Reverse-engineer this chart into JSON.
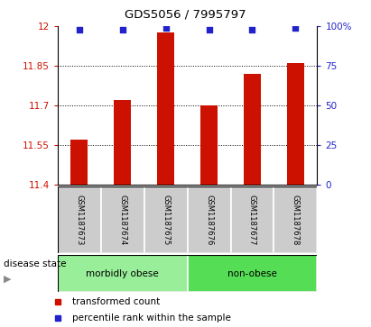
{
  "title": "GDS5056 / 7995797",
  "samples": [
    "GSM1187673",
    "GSM1187674",
    "GSM1187675",
    "GSM1187676",
    "GSM1187677",
    "GSM1187678"
  ],
  "bar_values": [
    11.57,
    11.72,
    11.975,
    11.7,
    11.82,
    11.86
  ],
  "percentile_values": [
    98,
    98,
    99,
    98,
    98,
    99
  ],
  "bar_color": "#cc1100",
  "percentile_color": "#2222cc",
  "ymin": 11.4,
  "ymax": 12.0,
  "yticks": [
    11.4,
    11.55,
    11.7,
    11.85,
    12.0
  ],
  "ytick_labels": [
    "11.4",
    "11.55",
    "11.7",
    "11.85",
    "12"
  ],
  "right_yticks": [
    0,
    25,
    50,
    75,
    100
  ],
  "right_ytick_labels": [
    "0",
    "25",
    "50",
    "75",
    "100%"
  ],
  "dotted_lines": [
    11.55,
    11.7,
    11.85
  ],
  "groups": [
    {
      "label": "morbidly obese",
      "indices": [
        0,
        1,
        2
      ],
      "color": "#99ee99"
    },
    {
      "label": "non-obese",
      "indices": [
        3,
        4,
        5
      ],
      "color": "#55dd55"
    }
  ],
  "disease_state_label": "disease state",
  "legend_bar_label": "transformed count",
  "legend_point_label": "percentile rank within the sample",
  "axis_left_color": "#cc1100",
  "axis_right_color": "#2222cc",
  "bar_width": 0.4,
  "sample_box_color": "#cccccc",
  "spine_color": "#000000"
}
